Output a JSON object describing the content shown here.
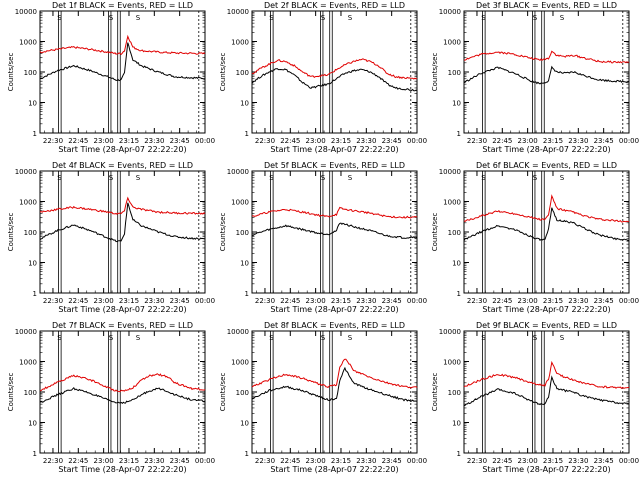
{
  "figure": {
    "xlabel": "Start Time (28-Apr-07 22:22:20)",
    "ylabel": "Counts/sec",
    "x_ticks": [
      "22:30",
      "22:45",
      "23:00",
      "23:15",
      "23:30",
      "23:45",
      "00:00"
    ],
    "y_ticks": [
      "1",
      "10",
      "100",
      "1000",
      "10000"
    ],
    "marker_label": "S",
    "colors": {
      "black": "#000000",
      "red": "#e00000",
      "axis": "#000000",
      "background": "#ffffff"
    }
  },
  "chart_data": [
    {
      "type": "line",
      "title": "Det 1f BLACK = Events, RED = LLD",
      "xlabel": "Start Time (28-Apr-07 22:22:20)",
      "ylabel": "Counts/sec",
      "yscale": "log",
      "ylim": [
        1,
        10000
      ],
      "xlim_minutes": [
        0,
        97.67
      ],
      "x": [
        0,
        10,
        20,
        30,
        40,
        45,
        48,
        50,
        52,
        55,
        60,
        70,
        80,
        90,
        97.7
      ],
      "series": [
        {
          "name": "Events",
          "color": "black",
          "values": [
            60,
            110,
            160,
            110,
            70,
            55,
            55,
            90,
            900,
            250,
            160,
            100,
            70,
            65,
            62
          ]
        },
        {
          "name": "LLD",
          "color": "red",
          "values": [
            450,
            550,
            650,
            550,
            450,
            400,
            400,
            500,
            1500,
            650,
            500,
            450,
            420,
            410,
            400
          ]
        }
      ],
      "vertical_markers_minutes": [
        11,
        12.5,
        40.5,
        42,
        46,
        47.5
      ],
      "s_markers_minutes": [
        11.5,
        42,
        58
      ]
    },
    {
      "type": "line",
      "title": "Det 2f BLACK = Events, RED = LLD",
      "xlabel": "Start Time (28-Apr-07 22:22:20)",
      "ylabel": "Counts/sec",
      "yscale": "log",
      "ylim": [
        1,
        10000
      ],
      "xlim_minutes": [
        0,
        97.67
      ],
      "x": [
        0,
        5,
        10,
        15,
        20,
        25,
        30,
        35,
        40,
        45,
        50,
        55,
        60,
        65,
        70,
        75,
        80,
        85,
        90,
        97.7
      ],
      "series": [
        {
          "name": "Events",
          "color": "black",
          "values": [
            45,
            70,
            100,
            130,
            120,
            80,
            45,
            30,
            35,
            40,
            60,
            90,
            110,
            120,
            100,
            70,
            40,
            30,
            28,
            25
          ]
        },
        {
          "name": "LLD",
          "color": "red",
          "values": [
            90,
            130,
            180,
            240,
            220,
            160,
            100,
            70,
            75,
            80,
            120,
            170,
            220,
            260,
            220,
            160,
            90,
            70,
            65,
            60
          ]
        }
      ],
      "vertical_markers_minutes": [
        11,
        12.5,
        40.5,
        42,
        46,
        47.5
      ],
      "s_markers_minutes": [
        11.5,
        42,
        58
      ]
    },
    {
      "type": "line",
      "title": "Det 3f BLACK = Events, RED = LLD",
      "xlabel": "Start Time (28-Apr-07 22:22:20)",
      "ylabel": "Counts/sec",
      "yscale": "log",
      "ylim": [
        1,
        10000
      ],
      "xlim_minutes": [
        0,
        97.67
      ],
      "x": [
        0,
        10,
        20,
        30,
        40,
        45,
        50,
        52,
        55,
        60,
        65,
        70,
        80,
        90,
        97.7
      ],
      "series": [
        {
          "name": "Events",
          "color": "black",
          "values": [
            45,
            90,
            140,
            90,
            50,
            42,
            50,
            140,
            100,
            90,
            100,
            80,
            55,
            50,
            48
          ]
        },
        {
          "name": "LLD",
          "color": "red",
          "values": [
            250,
            380,
            450,
            380,
            280,
            250,
            280,
            480,
            350,
            320,
            350,
            300,
            220,
            210,
            210
          ]
        }
      ],
      "vertical_markers_minutes": [
        11,
        12.5,
        40.5,
        42,
        46,
        47.5
      ],
      "s_markers_minutes": [
        11.5,
        42,
        58
      ]
    },
    {
      "type": "line",
      "title": "Det 4f BLACK = Events, RED = LLD",
      "xlabel": "Start Time (28-Apr-07 22:22:20)",
      "ylabel": "Counts/sec",
      "yscale": "log",
      "ylim": [
        1,
        10000
      ],
      "xlim_minutes": [
        0,
        97.67
      ],
      "x": [
        0,
        10,
        20,
        30,
        40,
        45,
        48,
        50,
        52,
        55,
        60,
        70,
        80,
        90,
        97.7
      ],
      "series": [
        {
          "name": "Events",
          "color": "black",
          "values": [
            60,
            110,
            170,
            110,
            65,
            50,
            50,
            90,
            900,
            250,
            160,
            100,
            70,
            62,
            60
          ]
        },
        {
          "name": "LLD",
          "color": "red",
          "values": [
            450,
            550,
            650,
            550,
            450,
            400,
            400,
            500,
            1300,
            650,
            550,
            450,
            420,
            410,
            400
          ]
        }
      ],
      "vertical_markers_minutes": [
        11,
        12.5,
        40.5,
        42,
        46,
        47.5
      ],
      "s_markers_minutes": [
        11.5,
        42,
        58
      ]
    },
    {
      "type": "line",
      "title": "Det 5f BLACK = Events, RED = LLD",
      "xlabel": "Start Time (28-Apr-07 22:22:20)",
      "ylabel": "Counts/sec",
      "yscale": "log",
      "ylim": [
        1,
        10000
      ],
      "xlim_minutes": [
        0,
        97.67
      ],
      "x": [
        0,
        10,
        20,
        30,
        40,
        45,
        50,
        52,
        55,
        60,
        70,
        80,
        90,
        97.7
      ],
      "series": [
        {
          "name": "Events",
          "color": "black",
          "values": [
            80,
            120,
            160,
            120,
            90,
            85,
            110,
            200,
            180,
            150,
            110,
            75,
            65,
            70
          ]
        },
        {
          "name": "LLD",
          "color": "red",
          "values": [
            320,
            450,
            550,
            450,
            350,
            320,
            380,
            600,
            550,
            500,
            420,
            320,
            300,
            310
          ]
        }
      ],
      "vertical_markers_minutes": [
        11,
        12.5,
        40.5,
        42,
        46,
        47.5
      ],
      "s_markers_minutes": [
        11.5,
        42,
        58
      ]
    },
    {
      "type": "line",
      "title": "Det 6f BLACK = Events, RED = LLD",
      "xlabel": "Start Time (28-Apr-07 22:22:20)",
      "ylabel": "Counts/sec",
      "yscale": "log",
      "ylim": [
        1,
        10000
      ],
      "xlim_minutes": [
        0,
        97.67
      ],
      "x": [
        0,
        10,
        20,
        30,
        40,
        45,
        48,
        50,
        52,
        55,
        60,
        65,
        70,
        80,
        90,
        97.7
      ],
      "series": [
        {
          "name": "Events",
          "color": "black",
          "values": [
            55,
            100,
            160,
            120,
            70,
            55,
            55,
            120,
            600,
            250,
            220,
            200,
            140,
            80,
            60,
            55
          ]
        },
        {
          "name": "LLD",
          "color": "red",
          "values": [
            220,
            330,
            480,
            400,
            300,
            260,
            260,
            350,
            1500,
            600,
            500,
            450,
            350,
            260,
            230,
            220
          ]
        }
      ],
      "vertical_markers_minutes": [
        11,
        12.5,
        40.5,
        42,
        46,
        47.5
      ],
      "s_markers_minutes": [
        11.5,
        42,
        58
      ]
    },
    {
      "type": "line",
      "title": "Det 7f BLACK = Events, RED = LLD",
      "xlabel": "Start Time (28-Apr-07 22:22:20)",
      "ylabel": "Counts/sec",
      "yscale": "log",
      "ylim": [
        1,
        10000
      ],
      "xlim_minutes": [
        0,
        97.67
      ],
      "x": [
        0,
        10,
        20,
        30,
        40,
        45,
        50,
        55,
        60,
        65,
        70,
        75,
        80,
        90,
        97.7
      ],
      "series": [
        {
          "name": "Events",
          "color": "black",
          "values": [
            45,
            80,
            130,
            90,
            55,
            45,
            45,
            55,
            80,
            110,
            130,
            110,
            80,
            55,
            50
          ]
        },
        {
          "name": "LLD",
          "color": "red",
          "values": [
            110,
            200,
            350,
            250,
            140,
            110,
            110,
            140,
            240,
            340,
            380,
            320,
            200,
            130,
            120
          ]
        }
      ],
      "vertical_markers_minutes": [
        11,
        12.5,
        40.5,
        42,
        46,
        47.5
      ],
      "s_markers_minutes": [
        11.5,
        42,
        58
      ]
    },
    {
      "type": "line",
      "title": "Det 8f BLACK = Events, RED = LLD",
      "xlabel": "Start Time (28-Apr-07 22:22:20)",
      "ylabel": "Counts/sec",
      "yscale": "log",
      "ylim": [
        1,
        10000
      ],
      "xlim_minutes": [
        0,
        97.67
      ],
      "x": [
        0,
        10,
        20,
        30,
        40,
        45,
        50,
        52,
        55,
        58,
        60,
        62,
        65,
        70,
        80,
        90,
        97.7
      ],
      "series": [
        {
          "name": "Events",
          "color": "black",
          "values": [
            60,
            110,
            150,
            110,
            70,
            55,
            60,
            250,
            600,
            300,
            200,
            180,
            150,
            120,
            80,
            55,
            50
          ]
        },
        {
          "name": "LLD",
          "color": "red",
          "values": [
            150,
            250,
            380,
            280,
            180,
            150,
            170,
            700,
            1200,
            800,
            500,
            450,
            400,
            300,
            200,
            150,
            140
          ]
        }
      ],
      "vertical_markers_minutes": [
        11,
        12.5,
        40.5,
        42,
        46,
        47.5
      ],
      "s_markers_minutes": [
        11.5,
        42,
        58
      ]
    },
    {
      "type": "line",
      "title": "Det 9f BLACK = Events, RED = LLD",
      "xlabel": "Start Time (28-Apr-07 22:22:20)",
      "ylabel": "Counts/sec",
      "yscale": "log",
      "ylim": [
        1,
        10000
      ],
      "xlim_minutes": [
        0,
        97.67
      ],
      "x": [
        0,
        10,
        20,
        30,
        40,
        45,
        48,
        50,
        52,
        55,
        60,
        65,
        70,
        80,
        90,
        97.7
      ],
      "series": [
        {
          "name": "Events",
          "color": "black",
          "values": [
            35,
            70,
            120,
            90,
            50,
            40,
            40,
            70,
            300,
            130,
            110,
            100,
            75,
            55,
            45,
            40
          ]
        },
        {
          "name": "LLD",
          "color": "red",
          "values": [
            150,
            250,
            380,
            300,
            200,
            170,
            170,
            260,
            900,
            400,
            300,
            250,
            200,
            150,
            140,
            140
          ]
        }
      ],
      "vertical_markers_minutes": [
        11,
        12.5,
        40.5,
        42,
        46,
        47.5
      ],
      "s_markers_minutes": [
        11.5,
        42,
        58
      ]
    }
  ]
}
